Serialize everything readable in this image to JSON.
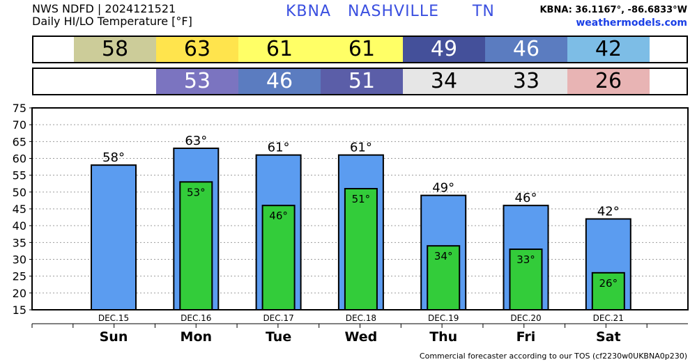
{
  "header": {
    "source": "NWS NDFD | 2024121521",
    "product": "Daily HI/LO Temperature [°F]",
    "station": "KBNA   NASHVILLE      TN",
    "coords": "KBNA: 36.1167°, -86.6833°W",
    "site": "weathermodels.com"
  },
  "hi_strip": [
    {
      "value": "58",
      "color": "#cccc99",
      "text_color": "#000000"
    },
    {
      "value": "63",
      "color": "#ffe44d",
      "text_color": "#000000"
    },
    {
      "value": "61",
      "color": "#ffff66",
      "text_color": "#000000"
    },
    {
      "value": "61",
      "color": "#ffff66",
      "text_color": "#000000"
    },
    {
      "value": "49",
      "color": "#44509a",
      "text_color": "#ffffff"
    },
    {
      "value": "46",
      "color": "#5b7cc0",
      "text_color": "#ffffff"
    },
    {
      "value": "42",
      "color": "#7dbde6",
      "text_color": "#000000"
    }
  ],
  "lo_strip": [
    {
      "value": "",
      "color": "#ffffff",
      "text_color": "#000000"
    },
    {
      "value": "53",
      "color": "#7b74c0",
      "text_color": "#ffffff"
    },
    {
      "value": "46",
      "color": "#5b7cc0",
      "text_color": "#ffffff"
    },
    {
      "value": "51",
      "color": "#5b5ea8",
      "text_color": "#ffffff"
    },
    {
      "value": "34",
      "color": "#e6e6e6",
      "text_color": "#000000"
    },
    {
      "value": "33",
      "color": "#e6e6e6",
      "text_color": "#000000"
    },
    {
      "value": "26",
      "color": "#e8b4b4",
      "text_color": "#000000"
    }
  ],
  "chart_data": {
    "type": "bar",
    "categories": [
      "Sun",
      "Mon",
      "Tue",
      "Wed",
      "Thu",
      "Fri",
      "Sat"
    ],
    "dates": [
      "DEC.15",
      "DEC.16",
      "DEC.17",
      "DEC.18",
      "DEC.19",
      "DEC.20",
      "DEC.21"
    ],
    "series": [
      {
        "values": [
          58,
          63,
          61,
          61,
          49,
          46,
          42
        ],
        "color": "#5b9cf0",
        "labels": [
          "58°",
          "63°",
          "61°",
          "61°",
          "49°",
          "46°",
          "42°"
        ]
      },
      {
        "values": [
          null,
          53,
          46,
          51,
          34,
          33,
          26
        ],
        "color": "#33cc3a",
        "labels": [
          "",
          "53°",
          "46°",
          "51°",
          "34°",
          "33°",
          "26°"
        ]
      }
    ],
    "ylim": [
      15,
      75
    ],
    "yticks": [
      "15",
      "20",
      "25",
      "30",
      "35",
      "40",
      "45",
      "50",
      "55",
      "60",
      "65",
      "70",
      "75"
    ],
    "grid": true
  },
  "footer": "Commercial forecaster according to our TOS (cf2230w0UKBNA0p230)"
}
